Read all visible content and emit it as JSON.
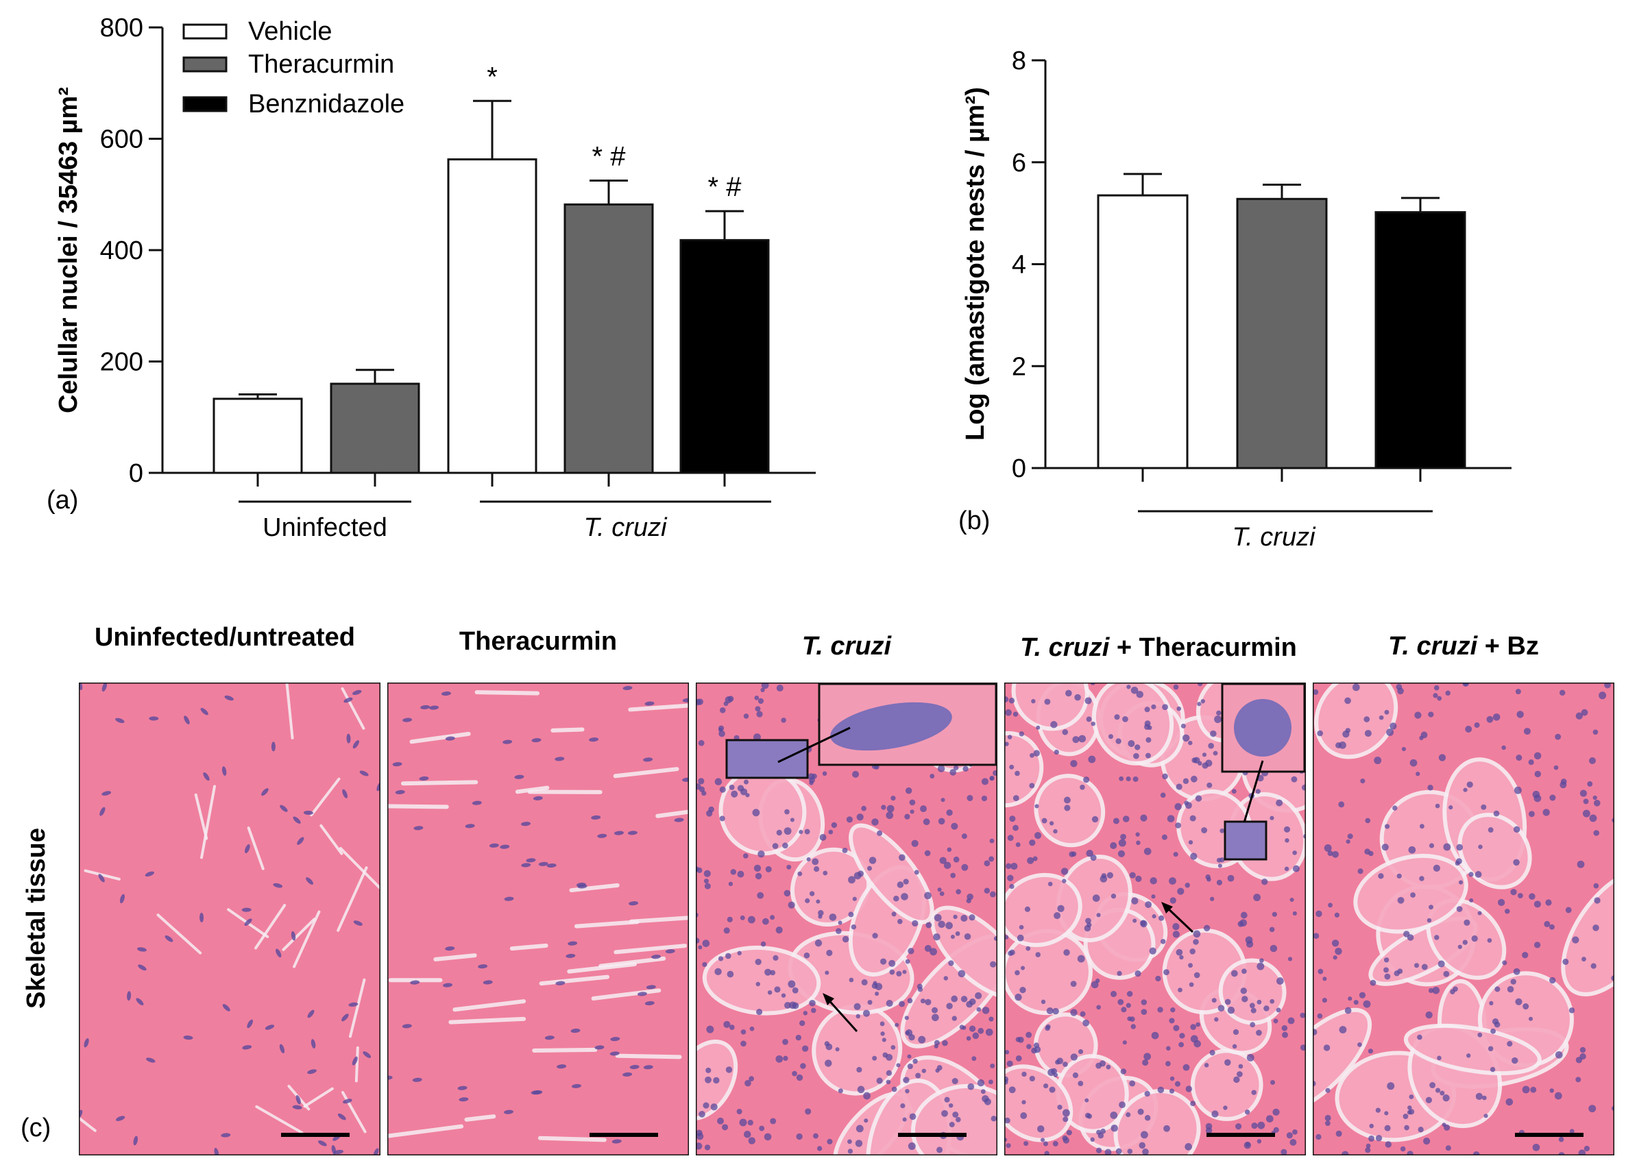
{
  "chart_data": [
    {
      "type": "bar",
      "panel_label": "(a)",
      "ylabel": "Celullar nuclei / 35463 µm²",
      "ylim": [
        0,
        800
      ],
      "yticks": [
        0,
        200,
        400,
        600,
        800
      ],
      "legend": {
        "placement": "top-left",
        "entries": [
          "Vehicle",
          "Theracurmin",
          "Benznidazole"
        ]
      },
      "series_colors": {
        "Vehicle": "#ffffff",
        "Theracurmin": "#666666",
        "Benznidazole": "#000000"
      },
      "groups": [
        "Uninfected",
        "T. cruzi"
      ],
      "bars": [
        {
          "group": "Uninfected",
          "series": "Vehicle",
          "value": 133,
          "error": 8,
          "annotation": ""
        },
        {
          "group": "Uninfected",
          "series": "Theracurmin",
          "value": 160,
          "error": 25,
          "annotation": ""
        },
        {
          "group": "T. cruzi",
          "series": "Vehicle",
          "value": 563,
          "error": 105,
          "annotation": "*"
        },
        {
          "group": "T. cruzi",
          "series": "Theracurmin",
          "value": 482,
          "error": 43,
          "annotation": "* #"
        },
        {
          "group": "T. cruzi",
          "series": "Benznidazole",
          "value": 418,
          "error": 52,
          "annotation": "* #"
        }
      ]
    },
    {
      "type": "bar",
      "panel_label": "(b)",
      "ylabel": "Log (amastigote nests / µm²)",
      "ylim": [
        0,
        8
      ],
      "yticks": [
        0,
        2,
        4,
        6,
        8
      ],
      "groups": [
        "T. cruzi"
      ],
      "bars": [
        {
          "group": "T. cruzi",
          "series": "Vehicle",
          "value": 5.35,
          "error": 0.42
        },
        {
          "group": "T. cruzi",
          "series": "Theracurmin",
          "value": 5.28,
          "error": 0.28
        },
        {
          "group": "T. cruzi",
          "series": "Benznidazole",
          "value": 5.02,
          "error": 0.28
        }
      ]
    }
  ],
  "histology": {
    "panel_label": "(c)",
    "row_label": "Skeletal tissue",
    "panels": [
      {
        "title": "Uninfected/untreated",
        "title_italic": "",
        "title_rest": ""
      },
      {
        "title": "Theracurmin",
        "title_italic": "",
        "title_rest": ""
      },
      {
        "title": "",
        "title_italic": "T. cruzi",
        "title_rest": ""
      },
      {
        "title": "",
        "title_italic": "T. cruzi",
        "title_rest": " + Theracurmin"
      },
      {
        "title": "",
        "title_italic": "T. cruzi",
        "title_rest": " + Bz"
      }
    ],
    "colors": {
      "tissue": "#ef7f9e",
      "tissue_light": "#f7a7bf",
      "nuclei": "#5a4a9c",
      "gap": "#f7eef3"
    }
  }
}
